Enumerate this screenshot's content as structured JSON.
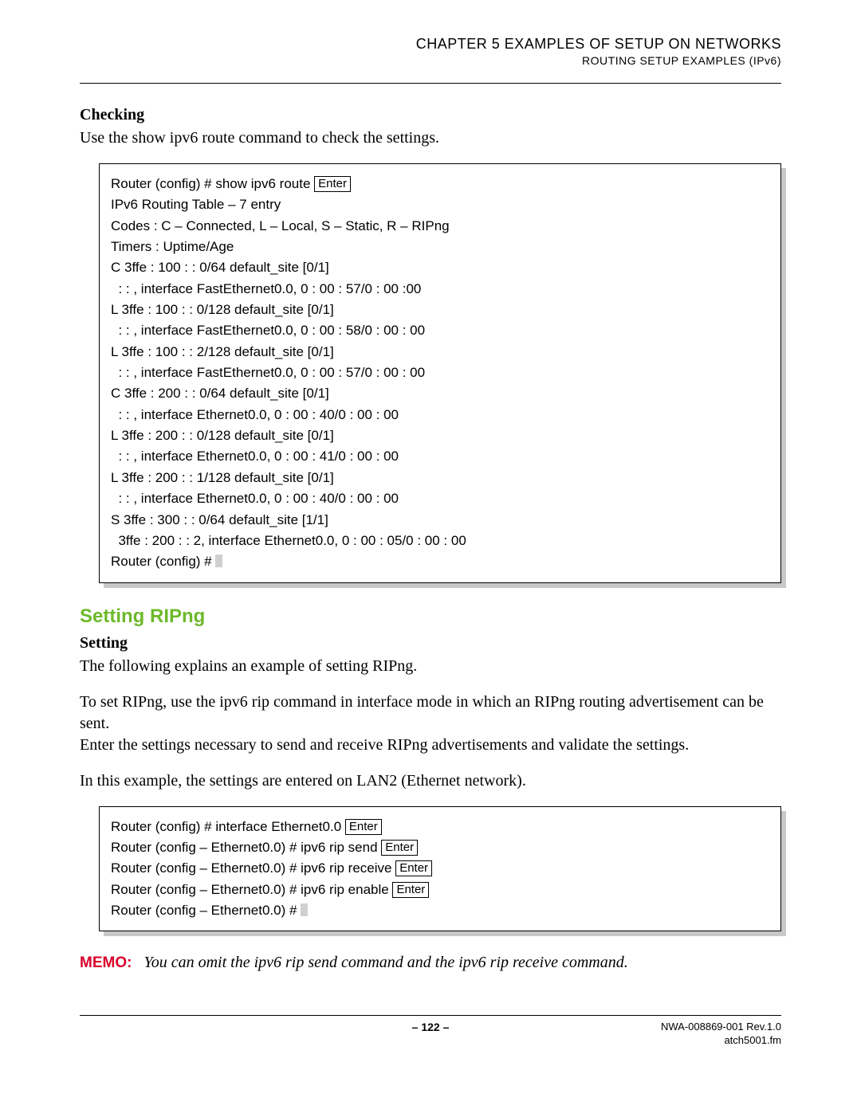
{
  "header": {
    "chapter": "CHAPTER 5   EXAMPLES OF SETUP ON NETWORKS",
    "subtitle": "ROUTING SETUP EXAMPLES (IPv6)"
  },
  "section1": {
    "heading": "Checking",
    "intro": "Use the show ipv6 route command to check the settings."
  },
  "codebox1": {
    "line1_pre": "Router (config) # show ipv6 route ",
    "enter": "Enter",
    "lines": [
      "IPv6 Routing Table – 7 entry",
      "Codes : C – Connected, L – Local, S – Static, R – RIPng",
      "Timers : Uptime/Age",
      "C 3ffe : 100 : : 0/64 default_site [0/1]",
      "  : : , interface FastEthernet0.0, 0 : 00 : 57/0 : 00 :00",
      "L 3ffe : 100 : : 0/128 default_site [0/1]",
      "  : : , interface FastEthernet0.0, 0 : 00 : 58/0 : 00 : 00",
      "L 3ffe : 100 : : 2/128 default_site [0/1]",
      "  : : , interface FastEthernet0.0, 0 : 00 : 57/0 : 00 : 00",
      "C 3ffe : 200 : : 0/64 default_site [0/1]",
      "  : : , interface Ethernet0.0, 0 : 00 : 40/0 : 00 : 00",
      "L 3ffe : 200 : : 0/128 default_site [0/1]",
      "  : : , interface Ethernet0.0, 0 : 00 : 41/0 : 00 : 00",
      "L 3ffe : 200 : : 1/128 default_site [0/1]",
      "  : : , interface Ethernet0.0, 0 : 00 : 40/0 : 00 : 00",
      "S 3ffe : 300 : : 0/64 default_site [1/1]",
      "  3ffe : 200 : : 2, interface Ethernet0.0, 0 : 00 : 05/0 : 00 : 00"
    ],
    "last_line": "Router (config) # "
  },
  "section2": {
    "title_green": "Setting RIPng",
    "heading": "Setting",
    "p1": "The following explains an example of setting RIPng.",
    "p2": "To set RIPng, use the ipv6 rip command in interface mode in which an RIPng routing advertisement can be sent.",
    "p3": "Enter the settings necessary to send and receive RIPng advertisements and validate the settings.",
    "p4": "In this example, the settings are entered on LAN2 (Ethernet network)."
  },
  "codebox2": {
    "enter": "Enter",
    "l1": "Router (config) # interface Ethernet0.0 ",
    "l2": "Router (config – Ethernet0.0) # ipv6 rip send ",
    "l3": "Router (config – Ethernet0.0) # ipv6 rip receive ",
    "l4": "Router (config – Ethernet0.0) # ipv6 rip enable ",
    "l5": "Router (config – Ethernet0.0) # "
  },
  "memo": {
    "label": "MEMO:",
    "text": "You can omit the ipv6 rip send command and the ipv6 rip receive command."
  },
  "footer": {
    "page": "– 122 –",
    "doc1": "NWA-008869-001 Rev.1.0",
    "doc2": "atch5001.fm"
  }
}
